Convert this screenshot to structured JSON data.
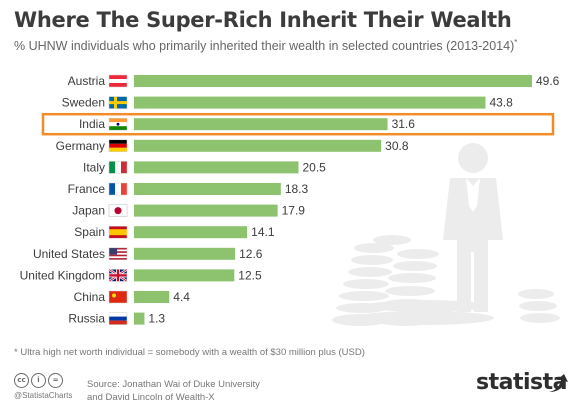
{
  "title": "Where The Super-Rich Inherit Their Wealth",
  "subtitle": "% UHNW individuals who primarily inherited their wealth in selected countries (2013-2014)",
  "subtitle_mark": "*",
  "footnote": "* Ultra high net worth individual = somebody with a wealth of $30 million plus (USD)",
  "social_handle": "@StatistaCharts",
  "cc_icons": [
    "creative-commons-icon",
    "attribution-icon",
    "no-derivatives-icon"
  ],
  "source_line1": "Source: Jonathan Wai of Duke University",
  "source_line2": "and David Lincoln of Wealth-X",
  "brand": "statista",
  "colors": {
    "bar": "#8dc26f",
    "highlight": "#f28c28",
    "text": "#3c3c3c",
    "illustration": "#ececec"
  },
  "chart_data": {
    "type": "bar",
    "orientation": "horizontal",
    "categories": [
      "Austria",
      "Sweden",
      "India",
      "Germany",
      "Italy",
      "France",
      "Japan",
      "Spain",
      "United States",
      "United Kingdom",
      "China",
      "Russia"
    ],
    "flags": [
      "austria-flag-icon",
      "sweden-flag-icon",
      "india-flag-icon",
      "germany-flag-icon",
      "italy-flag-icon",
      "france-flag-icon",
      "japan-flag-icon",
      "spain-flag-icon",
      "usa-flag-icon",
      "uk-flag-icon",
      "china-flag-icon",
      "russia-flag-icon"
    ],
    "values": [
      49.6,
      43.8,
      31.6,
      30.8,
      20.5,
      18.3,
      17.9,
      14.1,
      12.6,
      12.5,
      4.4,
      1.3
    ],
    "highlighted": "India",
    "xlim": [
      0,
      50
    ],
    "grid": false,
    "legend": "none"
  }
}
